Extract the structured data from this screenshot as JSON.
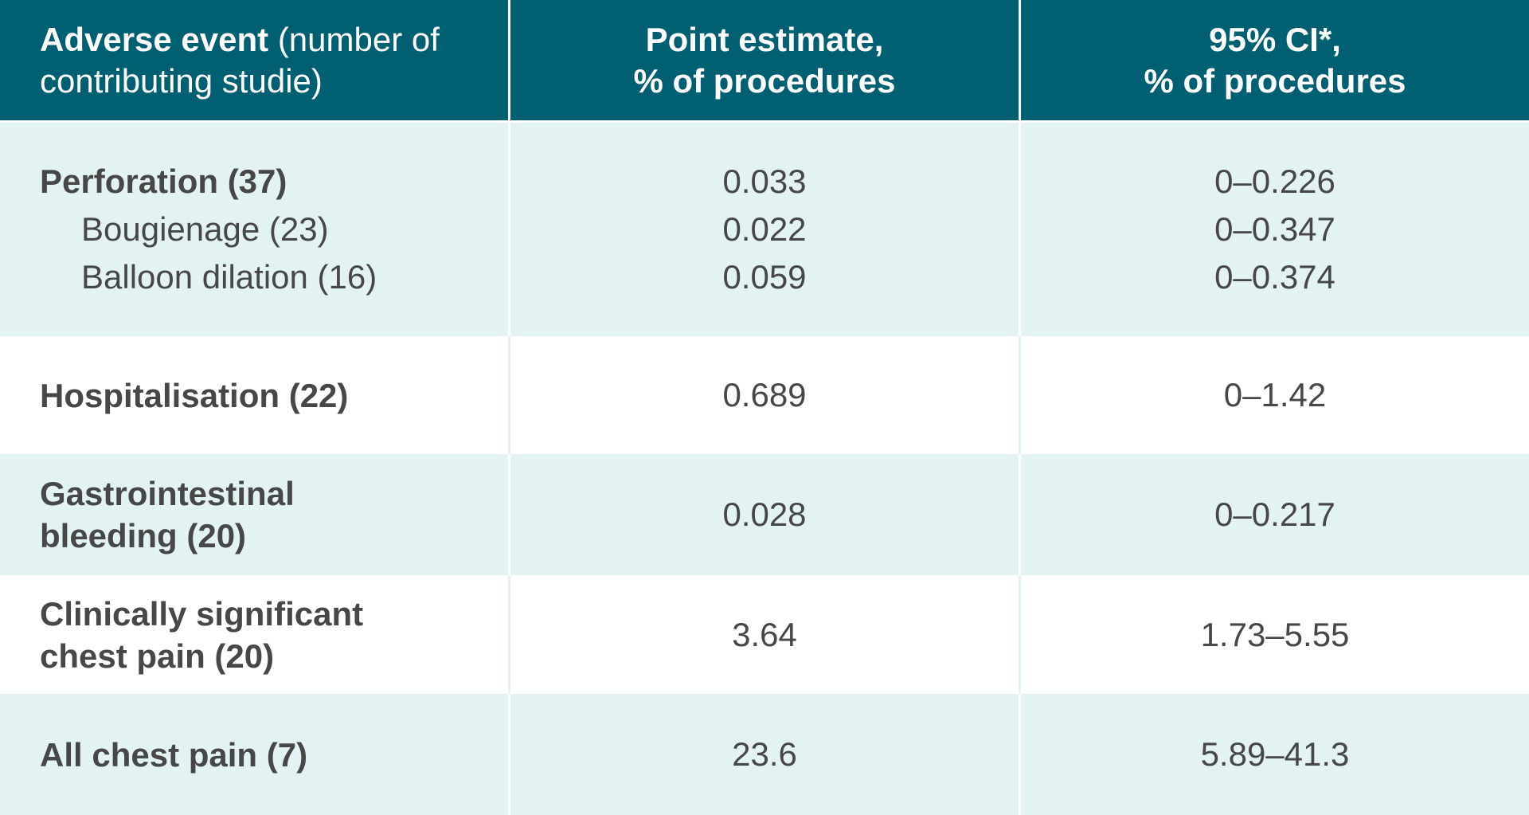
{
  "table": {
    "header": {
      "col1_bold": "Adverse event",
      "col1_rest_line1": " (number of",
      "col1_line2": "contributing studie)",
      "col2_line1": "Point estimate,",
      "col2_line2": "% of procedures",
      "col3_line1": "95% CI*,",
      "col3_line2": "% of procedures"
    },
    "rows": [
      {
        "label": "Perforation (37)",
        "estimate": "0.033",
        "ci": "0–0.226",
        "subrows": [
          {
            "label": "Bougienage (23)",
            "estimate": "0.022",
            "ci": "0–0.347"
          },
          {
            "label": "Balloon dilation (16)",
            "estimate": "0.059",
            "ci": "0–0.374"
          }
        ]
      },
      {
        "label": "Hospitalisation (22)",
        "estimate": "0.689",
        "ci": "0–1.42"
      },
      {
        "label_line1": "Gastrointestinal",
        "label_line2": "bleeding (20)",
        "estimate": "0.028",
        "ci": "0–0.217"
      },
      {
        "label_line1": "Clinically significant",
        "label_line2": "chest pain (20)",
        "estimate": "3.64",
        "ci": "1.73–5.55"
      },
      {
        "label": "All chest pain (7)",
        "estimate": "23.6",
        "ci": "5.89–41.3"
      }
    ]
  },
  "colors": {
    "header_bg": "#005f70",
    "header_text": "#ffffff",
    "row_light": "#e3f3f3",
    "row_white": "#ffffff",
    "body_text": "#474747"
  }
}
